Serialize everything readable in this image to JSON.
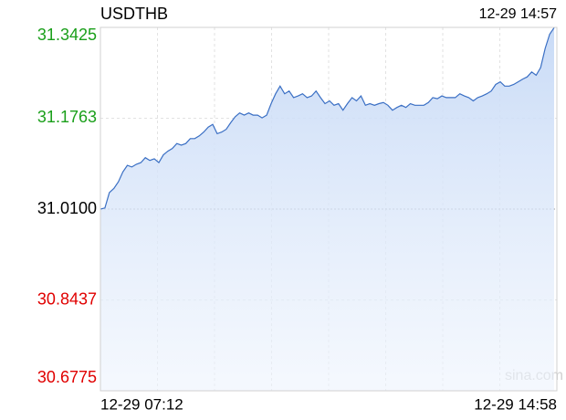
{
  "chart_data": {
    "type": "line",
    "title": "USDTHB",
    "timestamp": "12-29 14:57",
    "x_labels": [
      "12-29 07:12",
      "12-29 14:58"
    ],
    "watermark": "sina.com",
    "series": [
      {
        "name": "USDTHB",
        "color": "#3a6fc4",
        "values": [
          31.01,
          31.012,
          31.04,
          31.048,
          31.06,
          31.078,
          31.09,
          31.087,
          31.092,
          31.095,
          31.104,
          31.099,
          31.102,
          31.095,
          31.109,
          31.116,
          31.121,
          31.13,
          31.127,
          31.13,
          31.139,
          31.139,
          31.144,
          31.151,
          31.16,
          31.165,
          31.148,
          31.151,
          31.156,
          31.168,
          31.179,
          31.186,
          31.182,
          31.186,
          31.182,
          31.182,
          31.177,
          31.182,
          31.203,
          31.221,
          31.235,
          31.221,
          31.226,
          31.214,
          31.217,
          31.221,
          31.214,
          31.217,
          31.226,
          31.214,
          31.203,
          31.208,
          31.2,
          31.203,
          31.191,
          31.203,
          31.214,
          31.208,
          31.217,
          31.2,
          31.203,
          31.2,
          31.203,
          31.205,
          31.2,
          31.191,
          31.196,
          31.2,
          31.196,
          31.203,
          31.2,
          31.2,
          31.2,
          31.205,
          31.214,
          31.212,
          31.217,
          31.214,
          31.214,
          31.214,
          31.221,
          31.217,
          31.214,
          31.208,
          31.214,
          31.217,
          31.221,
          31.226,
          31.238,
          31.243,
          31.235,
          31.235,
          31.238,
          31.243,
          31.248,
          31.252,
          31.261,
          31.255,
          31.269,
          31.304,
          31.33,
          31.342
        ]
      }
    ],
    "ylim": [
      30.6775,
      31.3425
    ],
    "yticks": [
      30.6775,
      30.8437,
      {
        "value": 31.01,
        "label": "31.0100"
      },
      31.1763,
      31.3425
    ],
    "baseline": 31.01,
    "up_color": "#1a9f1a",
    "down_color": "#e00000",
    "flat_color": "#000000",
    "grid": true
  }
}
